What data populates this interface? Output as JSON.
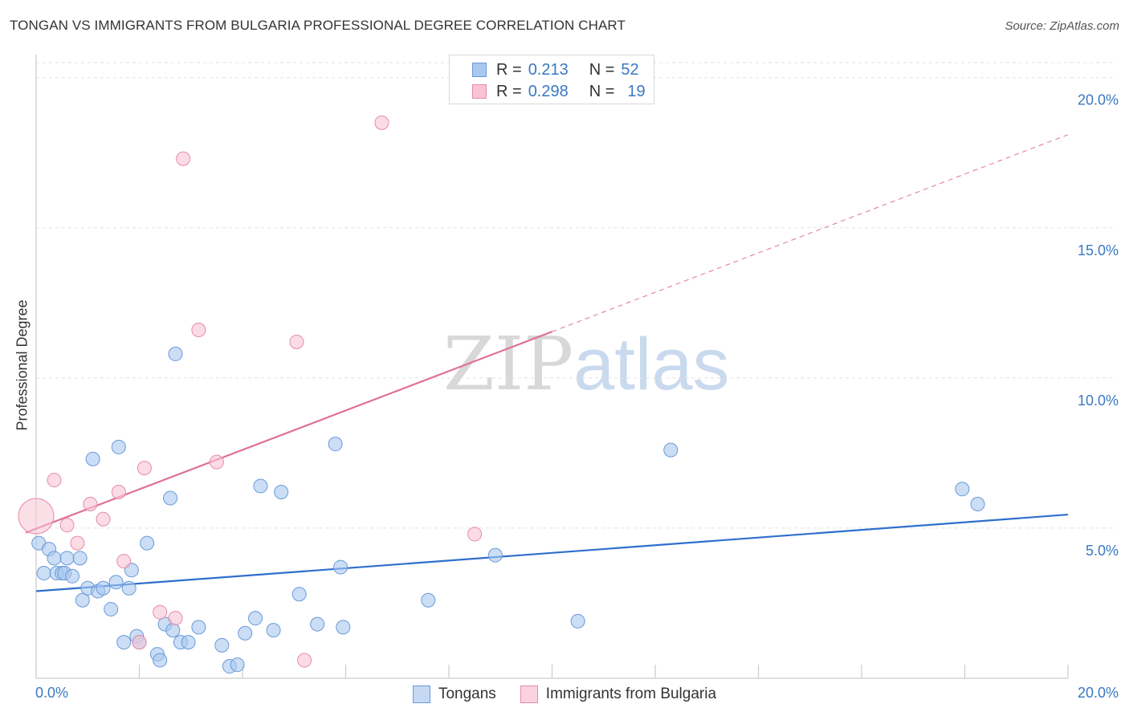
{
  "title": "TONGAN VS IMMIGRANTS FROM BULGARIA PROFESSIONAL DEGREE CORRELATION CHART",
  "source": "Source: ZipAtlas.com",
  "watermark": {
    "zip": "ZIP",
    "atlas": "atlas"
  },
  "legend": {
    "rows": [
      {
        "r_label": "R = ",
        "r_value": "0.213",
        "n_label": "N = ",
        "n_value": "52",
        "color": "#a9c8f0",
        "border": "#6a9ad8"
      },
      {
        "r_label": "R = ",
        "r_value": "0.298",
        "n_label": "N = ",
        "n_value": "19",
        "color": "#f8c4d4",
        "border": "#e88aa8"
      }
    ]
  },
  "bottom_legend": [
    {
      "label": "Tongans",
      "color": "#c5d9f5",
      "border": "#6a9ad8"
    },
    {
      "label": "Immigrants from Bulgaria",
      "color": "#fbd3df",
      "border": "#e88aa8"
    }
  ],
  "chart_data": {
    "type": "scatter",
    "title": "TONGAN VS IMMIGRANTS FROM BULGARIA PROFESSIONAL DEGREE CORRELATION CHART",
    "xlabel": "",
    "ylabel": "Professional Degree",
    "xlim": [
      0,
      20
    ],
    "ylim": [
      0,
      20.5
    ],
    "x_tick_labels": [
      {
        "value": 0,
        "label": "0.0%"
      },
      {
        "value": 20,
        "label": "20.0%"
      }
    ],
    "y_ticks": [
      {
        "value": 5,
        "label": "5.0%"
      },
      {
        "value": 10,
        "label": "10.0%"
      },
      {
        "value": 15,
        "label": "15.0%"
      },
      {
        "value": 20,
        "label": "20.0%"
      }
    ],
    "grid": true,
    "series": [
      {
        "name": "Tongans",
        "color": "#a9c8f0",
        "stroke": "#6a9ad8",
        "trend": {
          "x": [
            0,
            20
          ],
          "y": [
            2.9,
            5.45
          ],
          "color": "#2f6fcc",
          "dashed_from": null
        },
        "points": [
          [
            0.05,
            4.5
          ],
          [
            0.25,
            4.3
          ],
          [
            0.15,
            3.5
          ],
          [
            0.35,
            4.0
          ],
          [
            0.4,
            3.5
          ],
          [
            0.5,
            3.5
          ],
          [
            0.6,
            4.0
          ],
          [
            0.55,
            3.5
          ],
          [
            0.7,
            3.4
          ],
          [
            0.85,
            4.0
          ],
          [
            0.9,
            2.6
          ],
          [
            1.0,
            3.0
          ],
          [
            1.2,
            2.9
          ],
          [
            1.3,
            3.0
          ],
          [
            1.45,
            2.3
          ],
          [
            1.55,
            3.2
          ],
          [
            1.8,
            3.0
          ],
          [
            1.85,
            3.6
          ],
          [
            1.1,
            7.3
          ],
          [
            1.6,
            7.7
          ],
          [
            2.15,
            4.5
          ],
          [
            2.6,
            6.0
          ],
          [
            1.7,
            1.2
          ],
          [
            1.95,
            1.4
          ],
          [
            2.0,
            1.2
          ],
          [
            2.35,
            0.8
          ],
          [
            2.4,
            0.6
          ],
          [
            2.5,
            1.8
          ],
          [
            2.65,
            1.6
          ],
          [
            2.8,
            1.2
          ],
          [
            2.95,
            1.2
          ],
          [
            3.15,
            1.7
          ],
          [
            3.6,
            1.1
          ],
          [
            3.75,
            0.4
          ],
          [
            3.9,
            0.45
          ],
          [
            4.05,
            1.5
          ],
          [
            4.25,
            2.0
          ],
          [
            4.35,
            6.4
          ],
          [
            4.6,
            1.6
          ],
          [
            4.75,
            6.2
          ],
          [
            5.1,
            2.8
          ],
          [
            5.45,
            1.8
          ],
          [
            5.8,
            7.8
          ],
          [
            5.9,
            3.7
          ],
          [
            5.95,
            1.7
          ],
          [
            2.7,
            10.8
          ],
          [
            7.6,
            2.6
          ],
          [
            8.9,
            4.1
          ],
          [
            10.5,
            1.9
          ],
          [
            12.3,
            7.6
          ],
          [
            17.95,
            6.3
          ],
          [
            18.25,
            5.8
          ]
        ]
      },
      {
        "name": "Immigrants from Bulgaria",
        "color": "#f8c4d4",
        "stroke": "#e88aa8",
        "trend": {
          "x": [
            -0.2,
            20
          ],
          "y": [
            4.85,
            18.1
          ],
          "color": "#e0709a",
          "dashed_from": 10.0
        },
        "points": [
          [
            0.0,
            5.4
          ],
          [
            0.35,
            6.6
          ],
          [
            0.6,
            5.1
          ],
          [
            0.8,
            4.5
          ],
          [
            1.05,
            5.8
          ],
          [
            1.3,
            5.3
          ],
          [
            1.6,
            6.2
          ],
          [
            1.7,
            3.9
          ],
          [
            2.0,
            1.2
          ],
          [
            2.1,
            7.0
          ],
          [
            2.4,
            2.2
          ],
          [
            2.7,
            2.0
          ],
          [
            2.85,
            17.3
          ],
          [
            3.15,
            11.6
          ],
          [
            3.5,
            7.2
          ],
          [
            5.05,
            11.2
          ],
          [
            5.2,
            0.6
          ],
          [
            8.5,
            4.8
          ],
          [
            6.7,
            18.5
          ]
        ]
      }
    ]
  }
}
